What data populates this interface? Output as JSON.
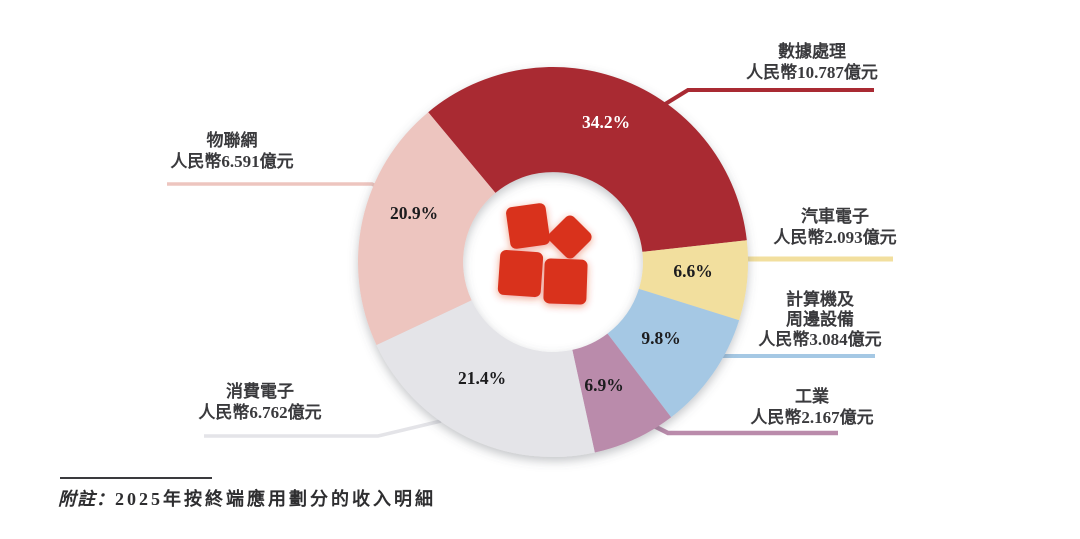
{
  "chart_data": {
    "type": "pie",
    "subtype": "donut",
    "title": "2025年按終端應用劃分的收入明細",
    "legend_position": "callout-labels",
    "start_angle_deg": -39.8,
    "total_pct": 99.8,
    "segments": [
      {
        "key": "data-processing",
        "name": "數據處理",
        "name_lines": [
          "數據處理"
        ],
        "value_label": "人民幣10.787億元",
        "pct": 34.2,
        "pct_label": "34.2%",
        "color": "#A92A33",
        "pct_text_color": "#FFFFFF"
      },
      {
        "key": "automotive-electronics",
        "name": "汽車電子",
        "name_lines": [
          "汽車電子"
        ],
        "value_label": "人民幣2.093億元",
        "pct": 6.6,
        "pct_label": "6.6%",
        "color": "#F2DF9E",
        "pct_text_color": "#1C1C1E"
      },
      {
        "key": "computing-peripherals",
        "name": "計算機及周邊設備",
        "name_lines": [
          "計算機及",
          "周邊設備"
        ],
        "value_label": "人民幣3.084億元",
        "pct": 9.8,
        "pct_label": "9.8%",
        "color": "#A5C8E4",
        "pct_text_color": "#1C1C1E"
      },
      {
        "key": "industrial",
        "name": "工業",
        "name_lines": [
          "工業"
        ],
        "value_label": "人民幣2.167億元",
        "pct": 6.9,
        "pct_label": "6.9%",
        "color": "#BA8BAB",
        "pct_text_color": "#1C1C1E"
      },
      {
        "key": "consumer-electronics",
        "name": "消費電子",
        "name_lines": [
          "消費電子"
        ],
        "value_label": "人民幣6.762億元",
        "pct": 21.4,
        "pct_label": "21.4%",
        "color": "#E4E4E8",
        "pct_text_color": "#1C1C1E"
      },
      {
        "key": "iot",
        "name": "物聯網",
        "name_lines": [
          "物聯網"
        ],
        "value_label": "人民幣6.591億元",
        "pct": 20.9,
        "pct_label": "20.9%",
        "color": "#EDC5BF",
        "pct_text_color": "#1C1C1E"
      }
    ],
    "center_logo": "gigadevice-four-squares-logo",
    "logo_color": "#D9301F"
  },
  "note": {
    "prefix": "附註：",
    "text": "2025年按終端應用劃分的收入明細"
  }
}
